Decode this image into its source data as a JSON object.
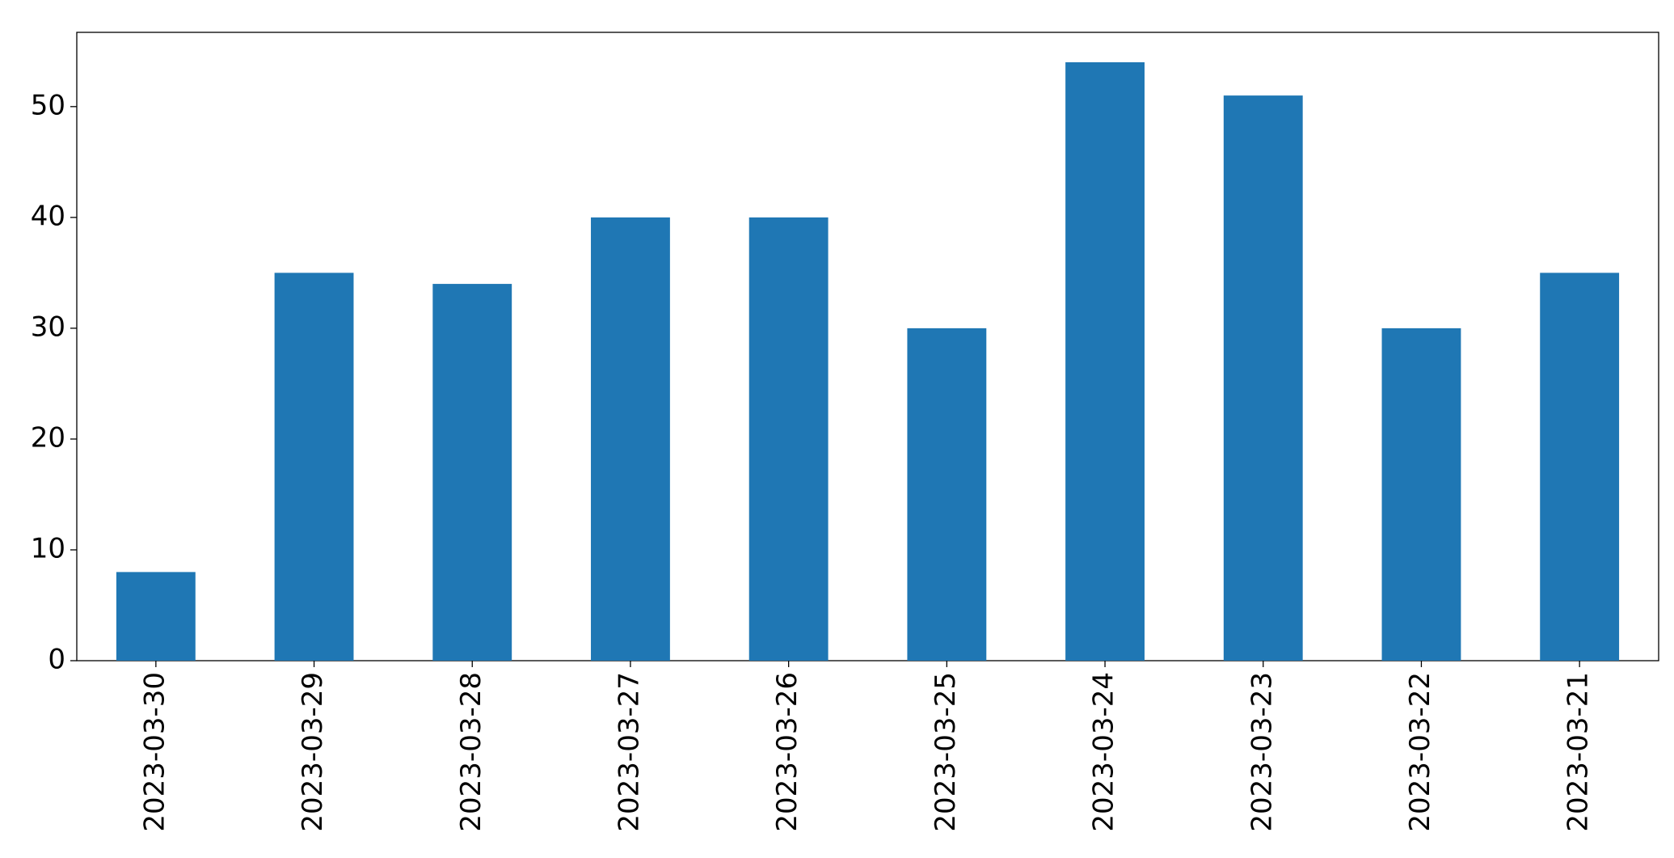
{
  "chart_data": {
    "type": "bar",
    "categories": [
      "2023-03-30",
      "2023-03-29",
      "2023-03-28",
      "2023-03-27",
      "2023-03-26",
      "2023-03-25",
      "2023-03-24",
      "2023-03-23",
      "2023-03-22",
      "2023-03-21"
    ],
    "values": [
      8,
      35,
      34,
      40,
      40,
      30,
      54,
      51,
      30,
      35
    ],
    "color": "#1f77b4",
    "ylim": [
      0,
      56.7
    ],
    "yticks": [
      0,
      10,
      20,
      30,
      40,
      50
    ],
    "grid": false
  }
}
